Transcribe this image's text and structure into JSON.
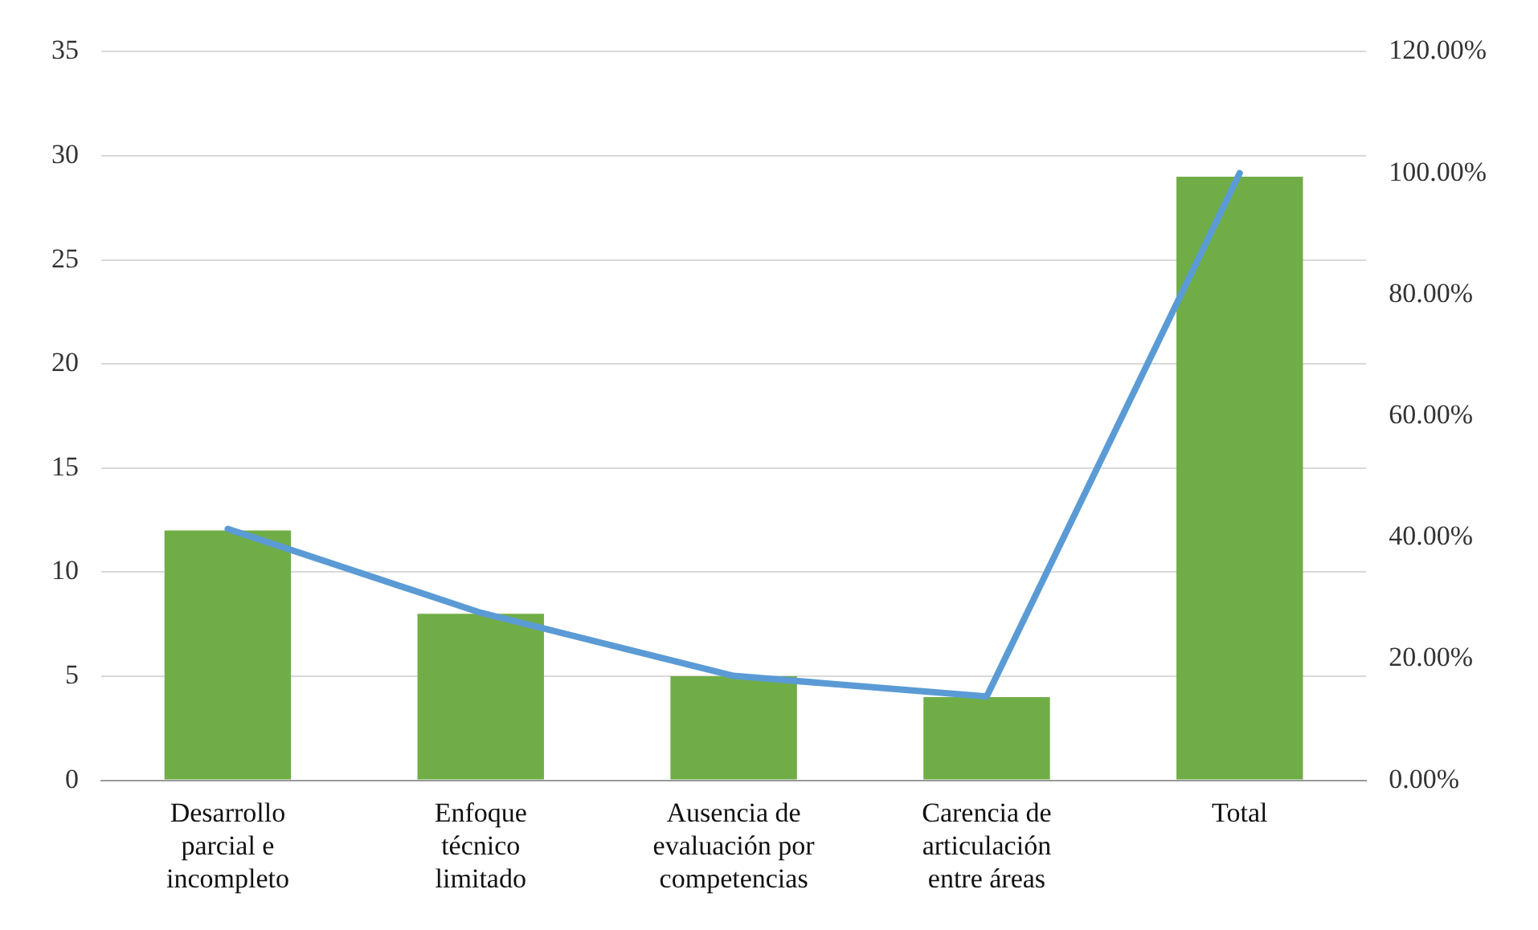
{
  "chart_data": {
    "type": "bar",
    "categories": [
      "Desarrollo parcial e incompleto",
      "Enfoque técnico limitado",
      "Ausencia de evaluación por competencias",
      "Carencia de articulación entre áreas",
      "Total"
    ],
    "series": [
      {
        "color": "#70ad47",
        "values": [
          12,
          8,
          5,
          4,
          29
        ]
      },
      {
        "type": "line",
        "axis": "y2",
        "color": "#5b9bd5",
        "values": [
          41.4,
          27.6,
          17.2,
          13.8,
          100
        ]
      }
    ],
    "ylim": [
      0,
      35
    ],
    "yticks": [
      0,
      5,
      10,
      15,
      20,
      25,
      30,
      35
    ],
    "y2lim": [
      0,
      120
    ],
    "y2ticks": [
      {
        "value": 0,
        "label": "0.00%"
      },
      {
        "value": 20,
        "label": "20.00%"
      },
      {
        "value": 40,
        "label": "40.00%"
      },
      {
        "value": 60,
        "label": "60.00%"
      },
      {
        "value": 80,
        "label": "80.00%"
      },
      {
        "value": 100,
        "label": "100.00%"
      },
      {
        "value": 120,
        "label": "120.00%"
      }
    ],
    "grid": "y",
    "legend": false,
    "marker": "none"
  }
}
